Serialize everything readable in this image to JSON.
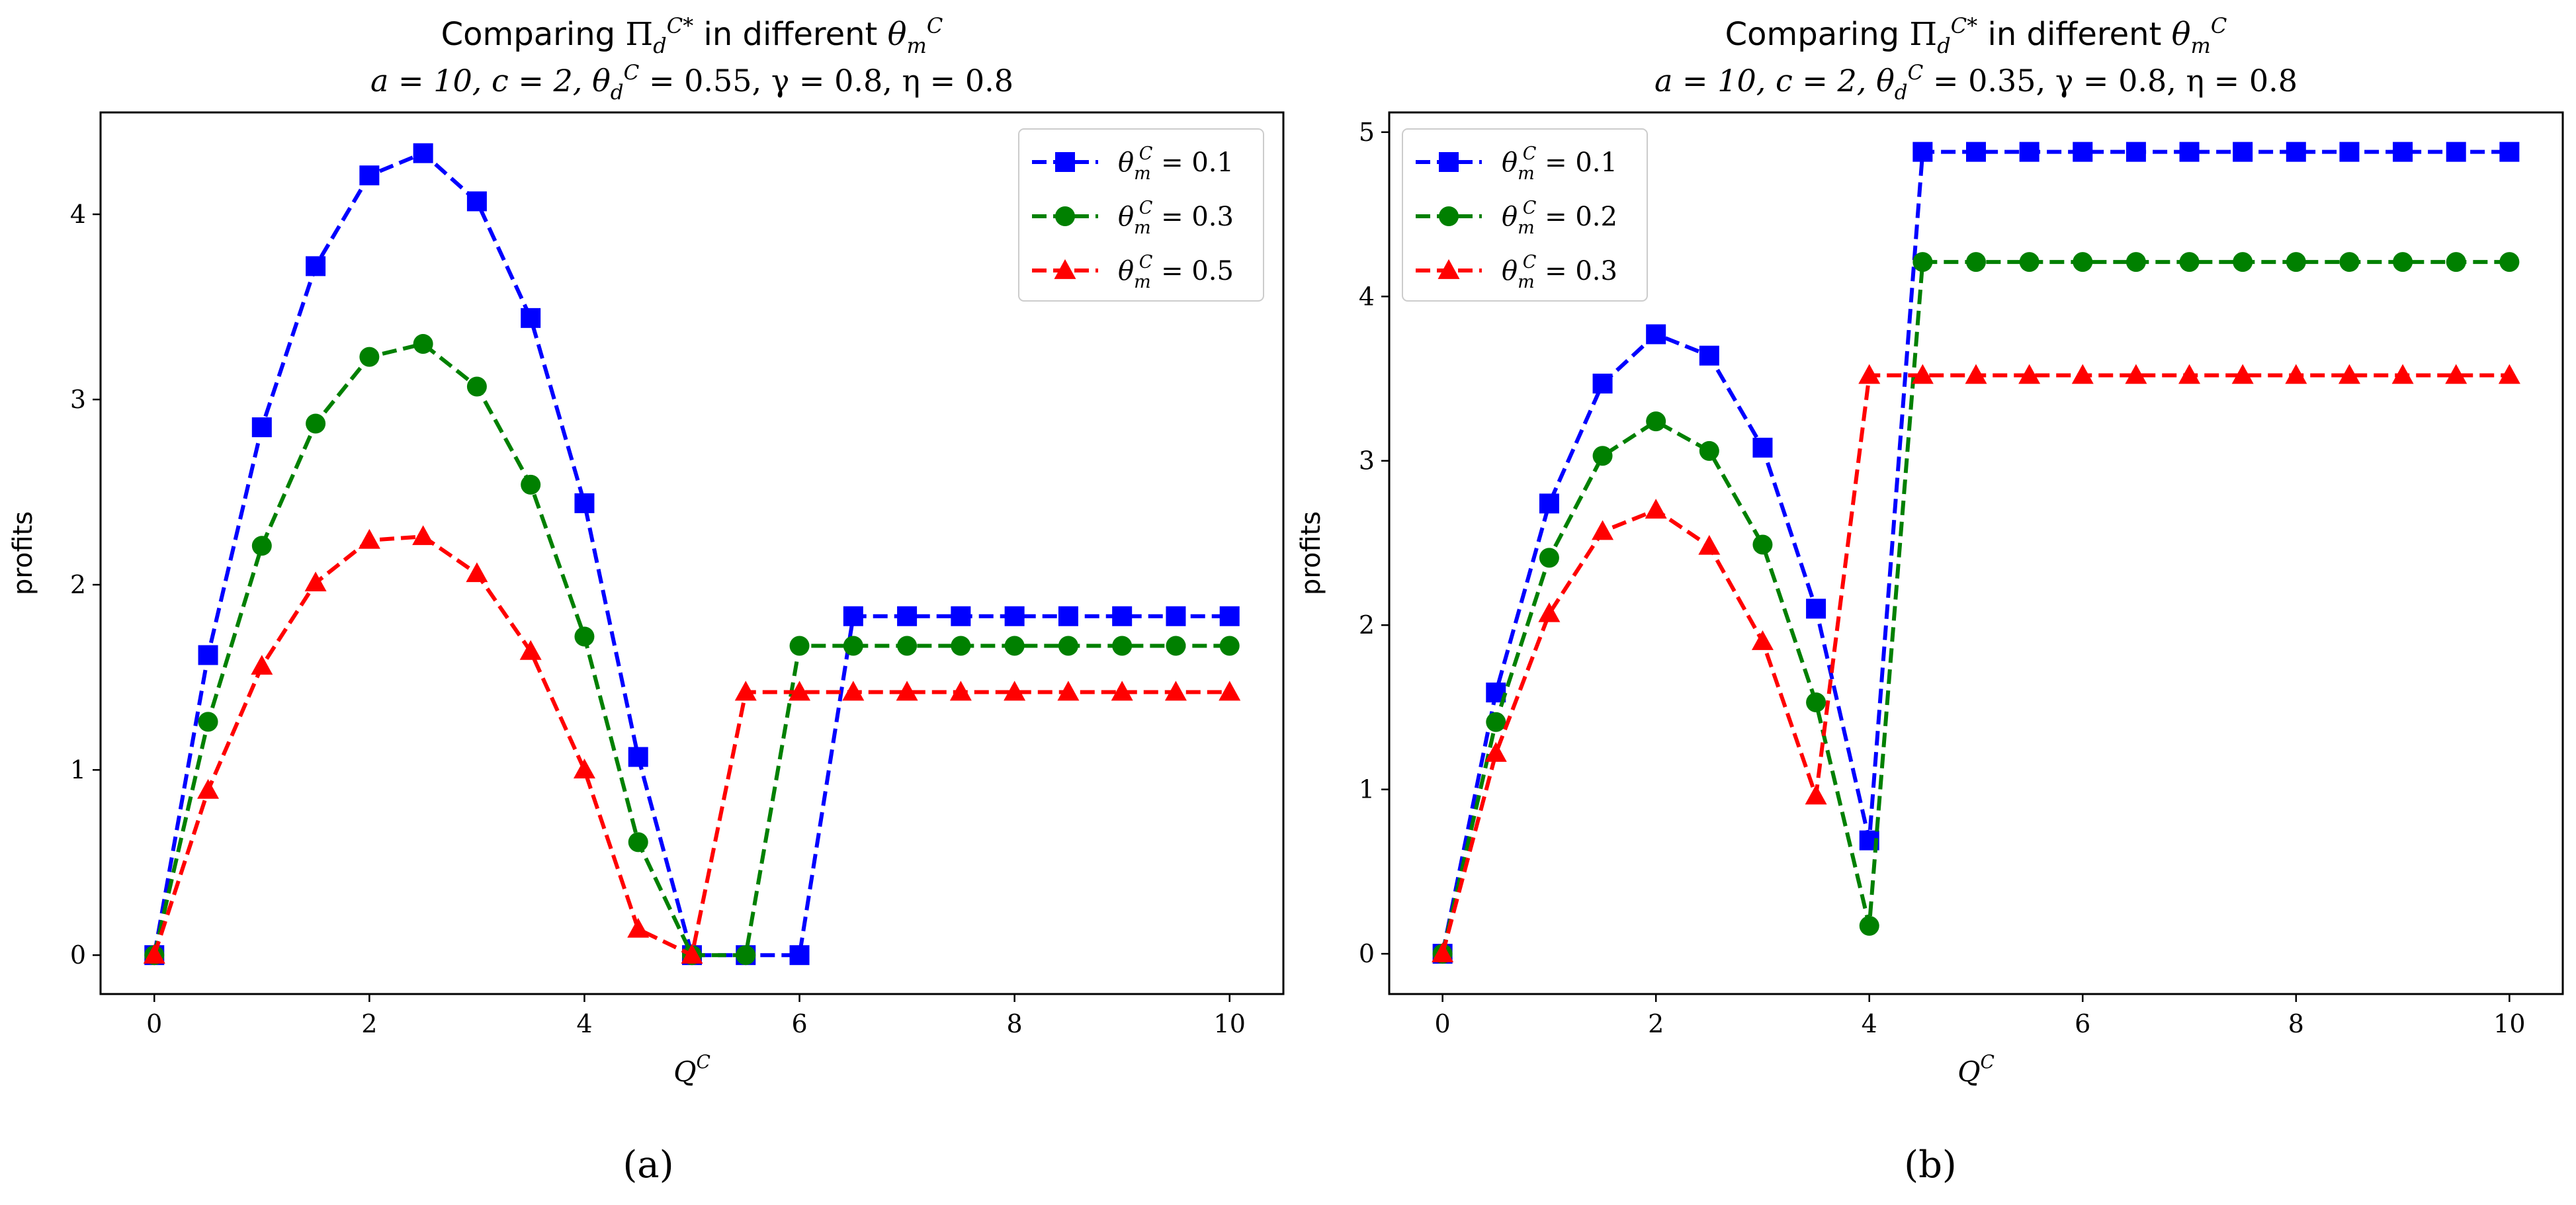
{
  "chart_data": [
    {
      "type": "line",
      "panel_label": "(a)",
      "title_prefix": "Comparing ",
      "title_symbol": "Π",
      "title_sub": "d",
      "title_sup": "C*",
      "title_mid": " in different ",
      "title_var": "θ",
      "title_var_sub": "m",
      "title_var_sup": "C",
      "subtitle": "a = 10, c = 2, θ_d^C = 0.55, γ = 0.8, η = 0.8",
      "subtitle_parts": {
        "a": "a = 10, c = 2, ",
        "theta": "θ",
        "sub": "d",
        "sup": "C",
        "rest": " = 0.55, γ = 0.8, η = 0.8"
      },
      "xlabel": "Q",
      "xlabel_sup": "C",
      "ylabel": "profits",
      "xlim": [
        -0.5,
        10.5
      ],
      "ylim": [
        -0.21,
        4.55
      ],
      "xticks": [
        0,
        2,
        4,
        6,
        8,
        10
      ],
      "yticks": [
        0,
        1,
        2,
        3,
        4
      ],
      "legend_position": "top-right",
      "x": [
        0,
        0.5,
        1,
        1.5,
        2,
        2.5,
        3,
        3.5,
        4,
        4.5,
        5,
        5.5,
        6,
        6.5,
        7,
        7.5,
        8,
        8.5,
        9,
        9.5,
        10
      ],
      "series": [
        {
          "name": "θ_m^C = 0.1",
          "legend_value": " = 0.1",
          "color": "#0000ff",
          "marker": "square",
          "values": [
            0,
            1.62,
            2.85,
            3.72,
            4.21,
            4.33,
            4.07,
            3.44,
            2.44,
            1.07,
            0,
            0,
            0,
            1.83,
            1.83,
            1.83,
            1.83,
            1.83,
            1.83,
            1.83,
            1.83
          ]
        },
        {
          "name": "θ_m^C = 0.3",
          "legend_value": " = 0.3",
          "color": "#008000",
          "marker": "circle",
          "values": [
            0,
            1.26,
            2.21,
            2.87,
            3.23,
            3.3,
            3.07,
            2.54,
            1.72,
            0.61,
            0,
            0,
            1.67,
            1.67,
            1.67,
            1.67,
            1.67,
            1.67,
            1.67,
            1.67,
            1.67
          ]
        },
        {
          "name": "θ_m^C = 0.5",
          "legend_value": " = 0.5",
          "color": "#ff0000",
          "marker": "triangle",
          "values": [
            0,
            0.89,
            1.56,
            2.01,
            2.24,
            2.26,
            2.06,
            1.64,
            1.0,
            0.14,
            0,
            1.42,
            1.42,
            1.42,
            1.42,
            1.42,
            1.42,
            1.42,
            1.42,
            1.42,
            1.42
          ]
        }
      ]
    },
    {
      "type": "line",
      "panel_label": "(b)",
      "title_prefix": "Comparing ",
      "title_symbol": "Π",
      "title_sub": "d",
      "title_sup": "C*",
      "title_mid": " in different ",
      "title_var": "θ",
      "title_var_sub": "m",
      "title_var_sup": "C",
      "subtitle": "a = 10, c = 2, θ_d^C = 0.35, γ = 0.8, η = 0.8",
      "subtitle_parts": {
        "a": "a = 10, c = 2, ",
        "theta": "θ",
        "sub": "d",
        "sup": "C",
        "rest": " = 0.35, γ = 0.8, η = 0.8"
      },
      "xlabel": "Q",
      "xlabel_sup": "C",
      "ylabel": "profits",
      "xlim": [
        -0.5,
        10.5
      ],
      "ylim": [
        -0.245,
        5.12
      ],
      "xticks": [
        0,
        2,
        4,
        6,
        8,
        10
      ],
      "yticks": [
        0,
        1,
        2,
        3,
        4,
        5
      ],
      "legend_position": "top-left",
      "x": [
        0,
        0.5,
        1,
        1.5,
        2,
        2.5,
        3,
        3.5,
        4,
        4.5,
        5,
        5.5,
        6,
        6.5,
        7,
        7.5,
        8,
        8.5,
        9,
        9.5,
        10
      ],
      "series": [
        {
          "name": "θ_m^C = 0.1",
          "legend_value": " = 0.1",
          "color": "#0000ff",
          "marker": "square",
          "values": [
            0,
            1.59,
            2.74,
            3.47,
            3.77,
            3.64,
            3.08,
            2.1,
            0.69,
            4.88,
            4.88,
            4.88,
            4.88,
            4.88,
            4.88,
            4.88,
            4.88,
            4.88,
            4.88,
            4.88,
            4.88
          ]
        },
        {
          "name": "θ_m^C = 0.2",
          "legend_value": " = 0.2",
          "color": "#008000",
          "marker": "circle",
          "values": [
            0,
            1.41,
            2.41,
            3.03,
            3.24,
            3.06,
            2.49,
            1.53,
            0.17,
            4.21,
            4.21,
            4.21,
            4.21,
            4.21,
            4.21,
            4.21,
            4.21,
            4.21,
            4.21,
            4.21,
            4.21
          ]
        },
        {
          "name": "θ_m^C = 0.3",
          "legend_value": " = 0.3",
          "color": "#ff0000",
          "marker": "triangle",
          "values": [
            0,
            1.22,
            2.07,
            2.57,
            2.7,
            2.48,
            1.9,
            0.96,
            3.52,
            3.52,
            3.52,
            3.52,
            3.52,
            3.52,
            3.52,
            3.52,
            3.52,
            3.52,
            3.52,
            3.52,
            3.52
          ]
        }
      ]
    }
  ]
}
